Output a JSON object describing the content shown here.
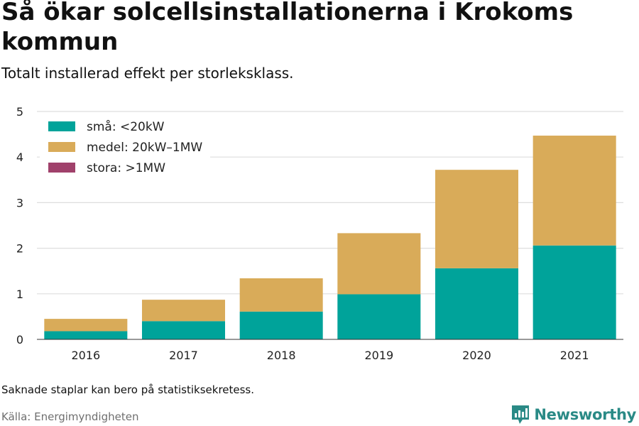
{
  "chart_data": {
    "type": "bar",
    "stacked": true,
    "title": "Så ökar solcellsinstallationerna i Krokoms kommun",
    "subtitle": "Totalt installerad effekt per storleksklass.",
    "xlabel": "",
    "ylabel": "",
    "categories": [
      "2016",
      "2017",
      "2018",
      "2019",
      "2020",
      "2021"
    ],
    "ylim": [
      0,
      5
    ],
    "yticks": [
      "0",
      "1",
      "2",
      "3",
      "4",
      "5"
    ],
    "grid": true,
    "legend_position": "top-left",
    "series": [
      {
        "name": "små: <20kW",
        "color": "#00a39a",
        "values": [
          0.18,
          0.4,
          0.61,
          0.99,
          1.56,
          2.06
        ]
      },
      {
        "name": "medel: 20kW–1MW",
        "color": "#d9ab59",
        "values": [
          0.27,
          0.47,
          0.73,
          1.34,
          2.16,
          2.41
        ]
      },
      {
        "name": "stora: >1MW",
        "color": "#a0416b",
        "values": [
          0,
          0,
          0,
          0,
          0,
          0
        ]
      }
    ]
  },
  "footnote": "Saknade staplar kan bero på statistiksekretess.",
  "source": "Källa: Energimyndigheten",
  "brand": {
    "name": "Newsworthy",
    "icon": "newsworthy-logo-icon",
    "color": "#2a8a86"
  }
}
